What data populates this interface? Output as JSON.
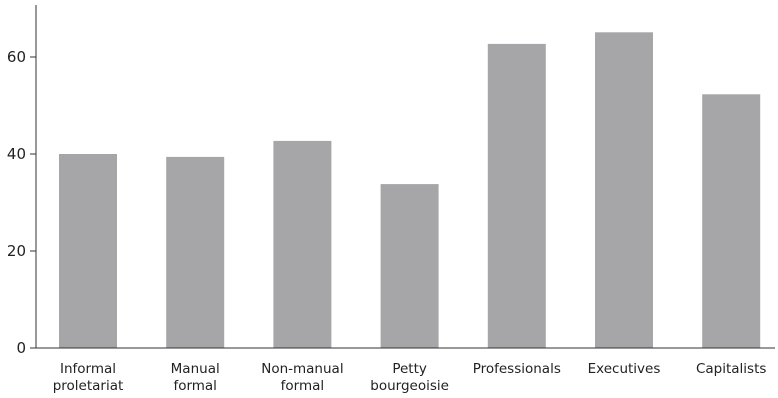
{
  "chart_data": {
    "type": "bar",
    "title": "",
    "xlabel": "",
    "ylabel": "",
    "categories": [
      [
        "Informal",
        "proletariat"
      ],
      [
        "Manual",
        "formal"
      ],
      [
        "Non-manual",
        "formal"
      ],
      [
        "Petty",
        "bourgeoisie"
      ],
      [
        "Professionals"
      ],
      [
        "Executives"
      ],
      [
        "Capitalists"
      ]
    ],
    "values": [
      40,
      39.4,
      42.7,
      33.8,
      62.7,
      65.1,
      52.3
    ],
    "ylim": [
      0,
      70
    ],
    "yticks": [
      0,
      20,
      40,
      60
    ],
    "ytick_labels": [
      "0",
      "20",
      "40",
      "60"
    ],
    "grid": false,
    "colors": {
      "bar": "#a6a6a8",
      "axis": "#333333"
    }
  }
}
